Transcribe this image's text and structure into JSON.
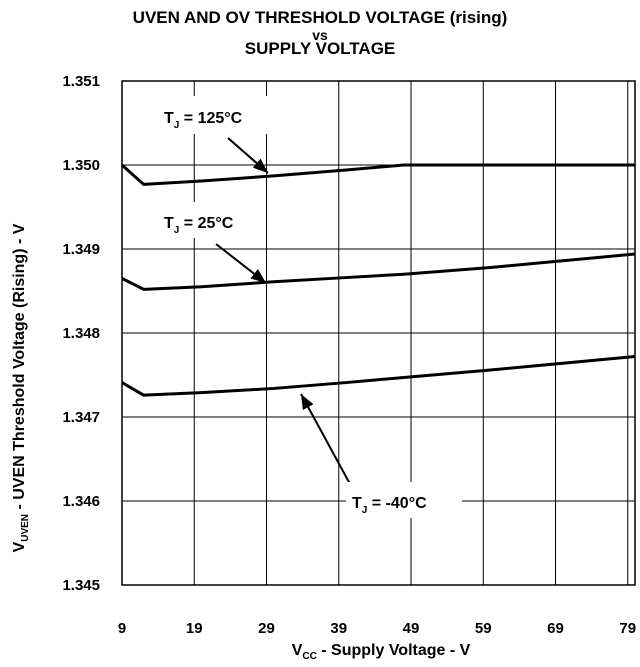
{
  "chart_data": {
    "type": "line",
    "title": "UVEN AND OV THRESHOLD VOLTAGE (rising)",
    "title_vs": "vs",
    "subtitle": "SUPPLY VOLTAGE",
    "xlabel": {
      "main": "V",
      "sub": "CC",
      "rest": " - Supply Voltage - V"
    },
    "ylabel": {
      "main": "V",
      "sub": "UVEN",
      "rest": " - UVEN Threshold Voltage (Rising) - V"
    },
    "xlim": [
      9,
      80
    ],
    "ylim": [
      1.345,
      1.351
    ],
    "x_ticks": [
      "9",
      "19",
      "29",
      "39",
      "49",
      "59",
      "69",
      "79"
    ],
    "y_ticks": [
      "1.345",
      "1.346",
      "1.347",
      "1.348",
      "1.349",
      "1.350",
      "1.351"
    ],
    "grid": true,
    "series": [
      {
        "name": "T_J = 125°C",
        "label_main": "T",
        "label_sub": "J",
        "label_rest": " = 125°C",
        "x": [
          9,
          12,
          20,
          30,
          40,
          48,
          60,
          70,
          80
        ],
        "values": [
          1.35,
          1.34977,
          1.34981,
          1.34987,
          1.34994,
          1.35,
          1.35,
          1.35,
          1.35
        ]
      },
      {
        "name": "T_J = 25°C",
        "label_main": "T",
        "label_sub": "J",
        "label_rest": " = 25°C",
        "x": [
          9,
          12,
          20,
          30,
          40,
          48,
          60,
          70,
          80
        ],
        "values": [
          1.34865,
          1.34852,
          1.34855,
          1.34861,
          1.34866,
          1.3487,
          1.34878,
          1.34886,
          1.34894
        ]
      },
      {
        "name": "T_J = -40°C",
        "label_main": "T",
        "label_sub": "J",
        "label_rest": " = -40°C",
        "x": [
          9,
          12,
          20,
          30,
          40,
          48,
          60,
          70,
          80
        ],
        "values": [
          1.34741,
          1.34726,
          1.34729,
          1.34734,
          1.34741,
          1.34747,
          1.34756,
          1.34764,
          1.34772
        ]
      }
    ]
  }
}
